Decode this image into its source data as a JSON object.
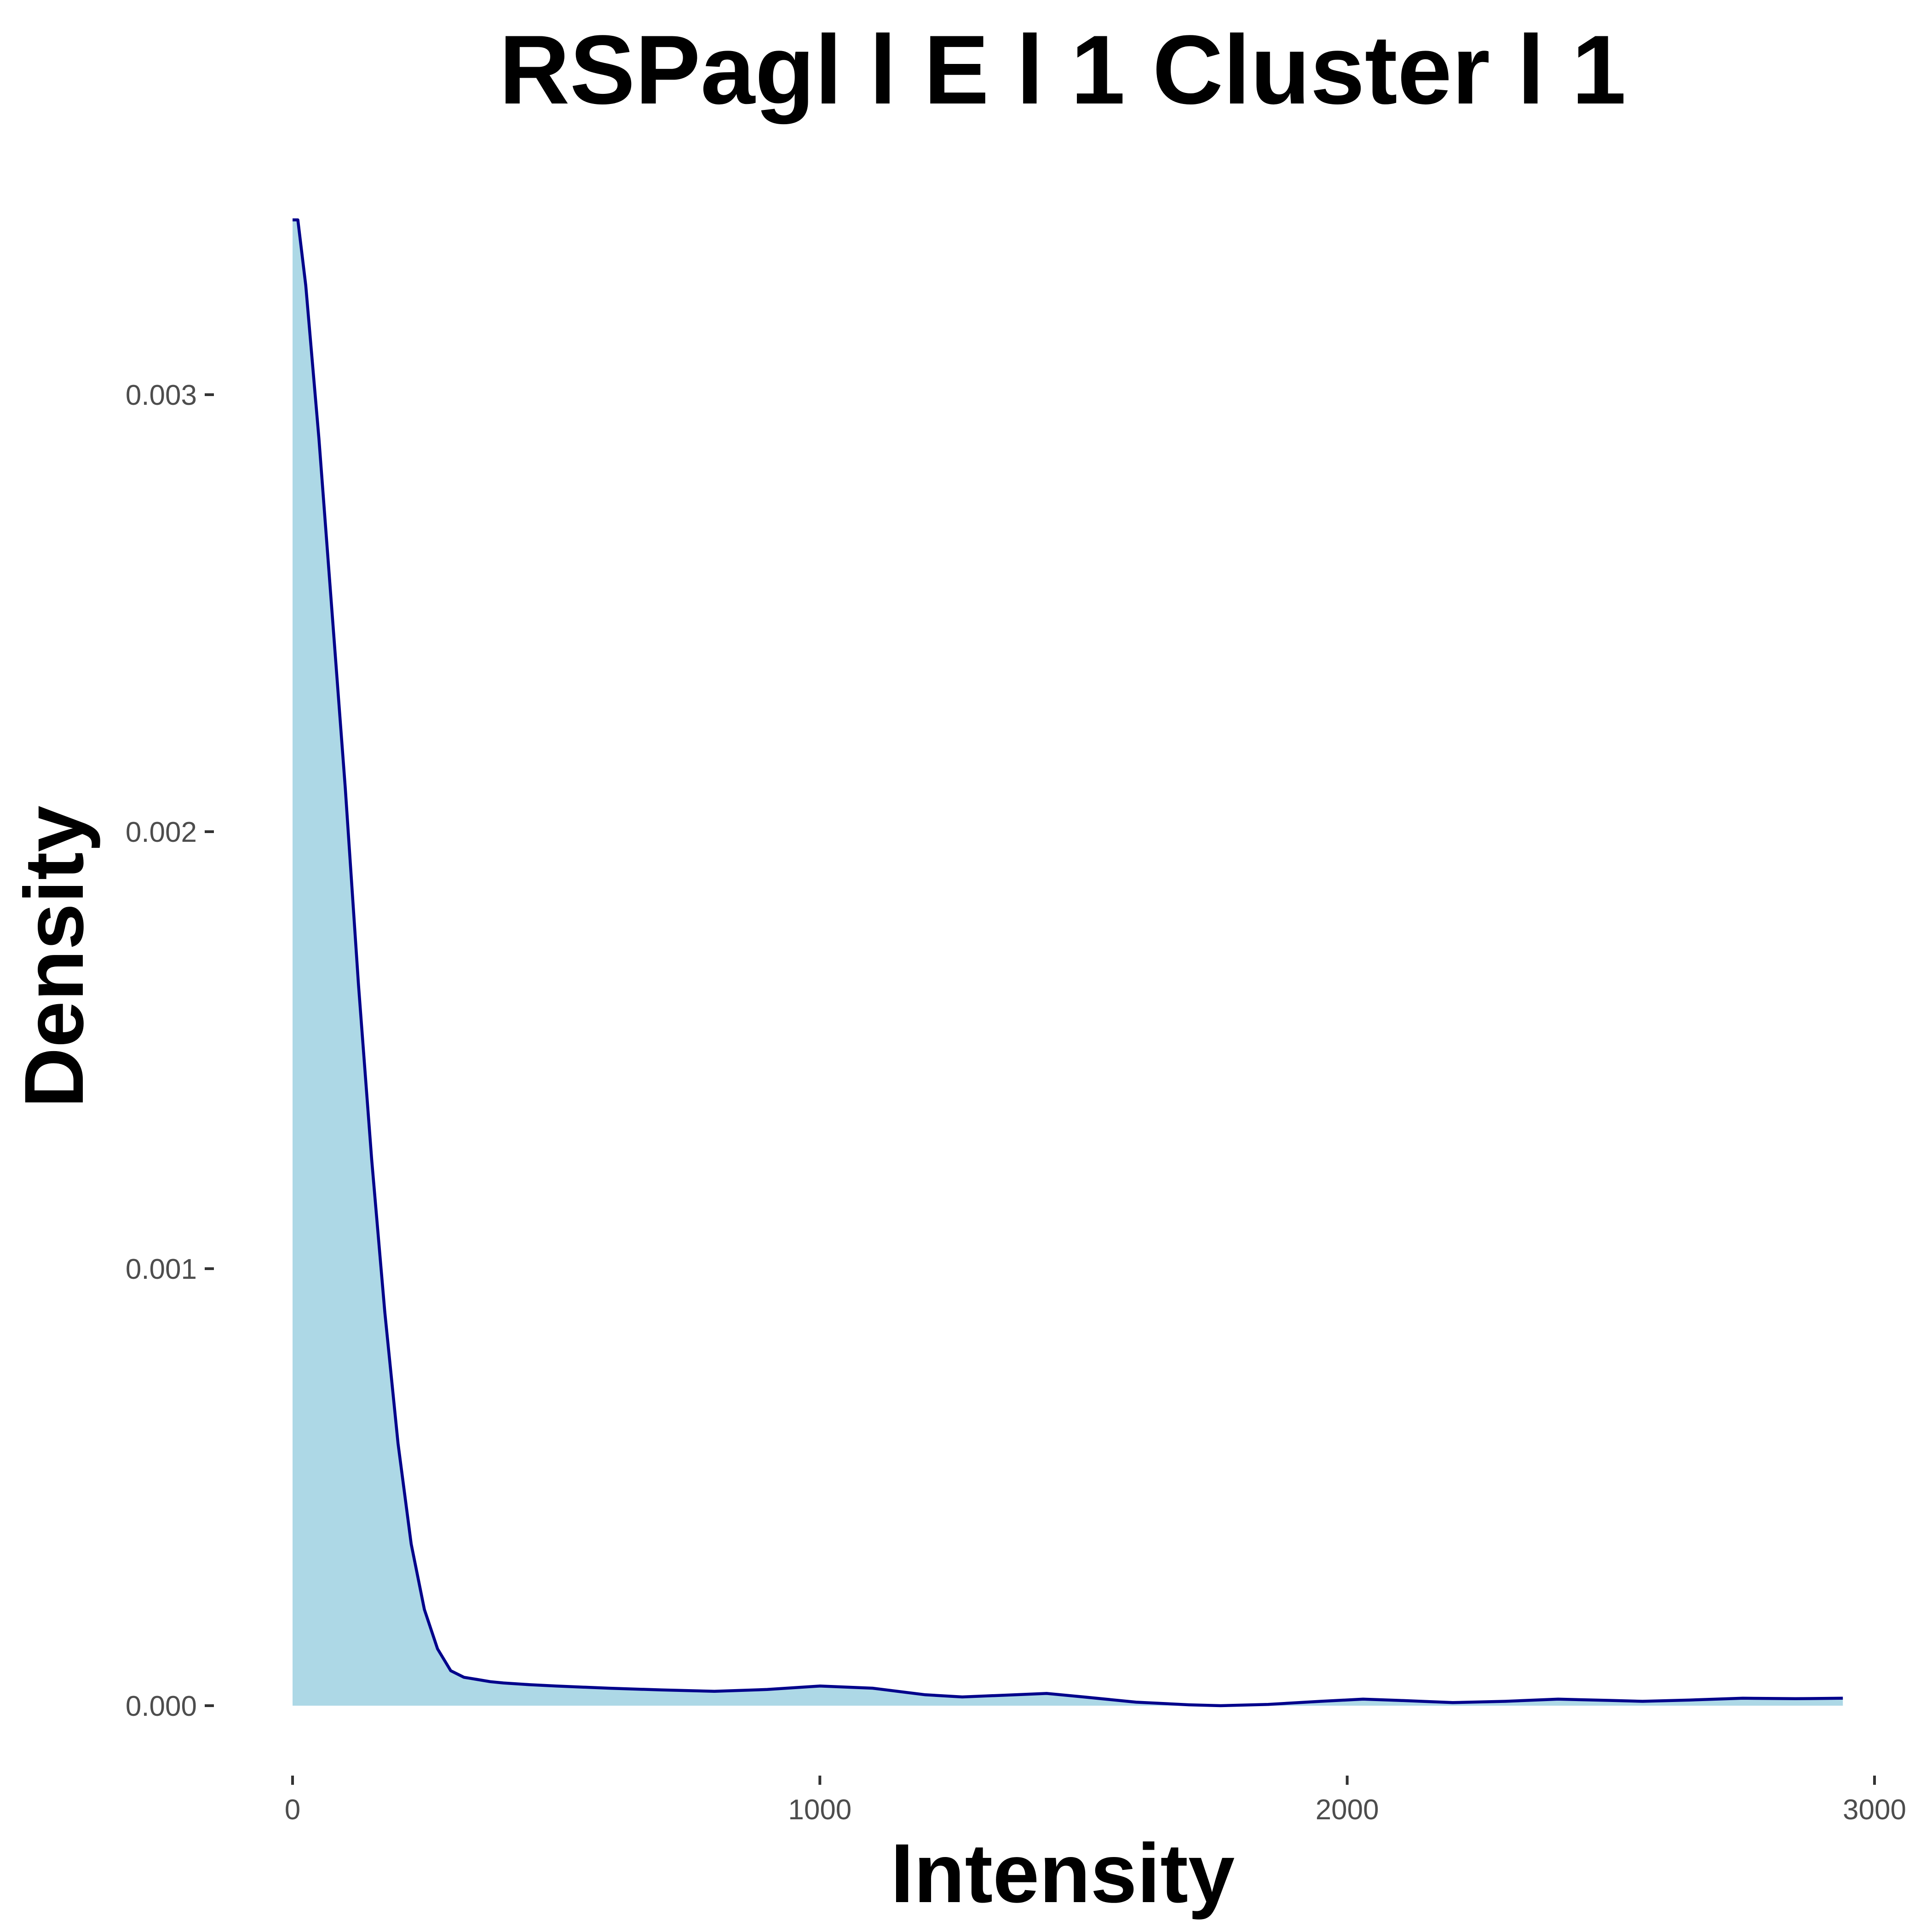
{
  "chart_data": {
    "type": "area",
    "title": "RSPagl l E l 1 Cluster l  1",
    "xlabel": "Intensity",
    "ylabel": "Density",
    "xlim": [
      -20,
      3000
    ],
    "ylim": [
      0,
      0.0035
    ],
    "x_ticks": [
      0,
      1000,
      2000,
      3000
    ],
    "x_tick_labels": [
      "0",
      "1000",
      "2000",
      "3000"
    ],
    "y_ticks": [
      0,
      0.001,
      0.002,
      0.003
    ],
    "y_tick_labels": [
      "0.000",
      "0.001",
      "0.002",
      "0.003"
    ],
    "grid": false,
    "legend": "none",
    "fill_color": "#ADD8E6",
    "line_color": "#00008B",
    "series": [
      {
        "x": [
          0,
          10,
          25,
          50,
          75,
          100,
          125,
          150,
          175,
          200,
          225,
          250,
          275,
          300,
          325,
          350,
          375,
          400,
          450,
          500,
          600,
          700,
          800,
          900,
          1000,
          1100,
          1200,
          1270,
          1350,
          1430,
          1500,
          1600,
          1700,
          1760,
          1850,
          1950,
          2030,
          2100,
          2200,
          2300,
          2400,
          2500,
          2560,
          2650,
          2750,
          2850,
          2940
        ],
        "y": [
          0.0034,
          0.0034,
          0.00325,
          0.0029,
          0.0025,
          0.0021,
          0.00165,
          0.00125,
          0.0009,
          0.0006,
          0.00037,
          0.00022,
          0.00013,
          8e-05,
          6.5e-05,
          6e-05,
          5.5e-05,
          5.2e-05,
          4.8e-05,
          4.5e-05,
          4e-05,
          3.6e-05,
          3.3e-05,
          3.7e-05,
          4.5e-05,
          4e-05,
          2.5e-05,
          2e-05,
          2.4e-05,
          2.8e-05,
          2e-05,
          8e-06,
          2e-06,
          0.0,
          3e-06,
          1e-05,
          1.5e-05,
          1.2e-05,
          7e-06,
          1e-05,
          1.5e-05,
          1.2e-05,
          1e-05,
          1.3e-05,
          1.7e-05,
          1.6e-05,
          1.7e-05
        ]
      }
    ]
  }
}
